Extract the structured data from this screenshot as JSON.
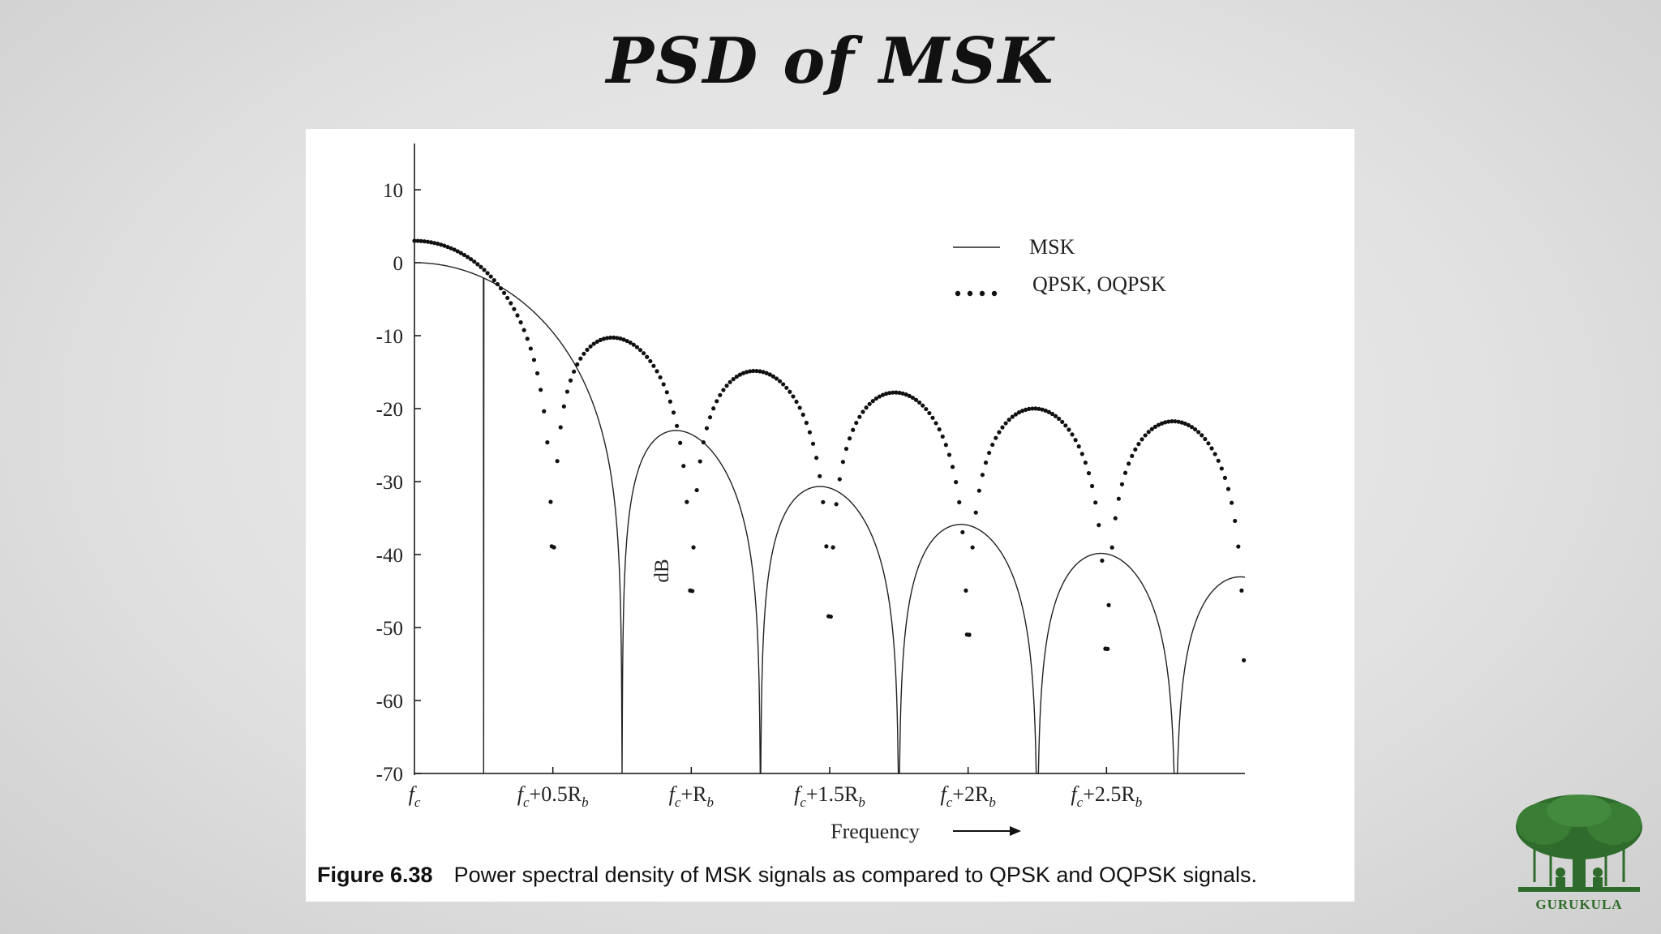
{
  "slide": {
    "title": "PSD of MSK"
  },
  "figure": {
    "caption_number": "Figure 6.38",
    "caption_text": "Power spectral density of MSK signals as compared to QPSK and OQPSK signals."
  },
  "logo": {
    "text": "GURUKULA",
    "icon": "banyan-tree-icon"
  },
  "chart_data": {
    "type": "line",
    "title": "",
    "ylabel": "dB",
    "xlabel": "Frequency",
    "xlim": [
      0,
      3.0
    ],
    "ylim": [
      -70,
      15
    ],
    "y_ticks": [
      10,
      0,
      -10,
      -20,
      -30,
      -40,
      -50,
      -60,
      -70
    ],
    "x_ticks": [
      {
        "value": 0,
        "label_base": "f",
        "label_sub": "c",
        "label_rest": ""
      },
      {
        "value": 0.5,
        "label_base": "f",
        "label_sub": "c",
        "label_rest": "+0.5R"
      },
      {
        "value": 1.0,
        "label_base": "f",
        "label_sub": "c",
        "label_rest": "+R"
      },
      {
        "value": 1.5,
        "label_base": "f",
        "label_sub": "c",
        "label_rest": "+1.5R"
      },
      {
        "value": 2.0,
        "label_base": "f",
        "label_sub": "c",
        "label_rest": "+2R"
      },
      {
        "value": 2.5,
        "label_base": "f",
        "label_sub": "c",
        "label_rest": "+2.5R"
      }
    ],
    "x_tick_rate_sub": "b",
    "legend_position": "top-right",
    "series": [
      {
        "name": "MSK",
        "style": "solid",
        "color": "#222222",
        "peak_db": 0,
        "nulls": [
          0.75,
          1.25,
          1.75,
          2.25,
          2.75
        ]
      },
      {
        "name": "QPSK, OQPSK",
        "style": "dotted",
        "color": "#111111",
        "peak_db": 3,
        "nulls": [
          0.5,
          1.0,
          1.5,
          2.0,
          2.5,
          3.0
        ]
      }
    ]
  }
}
